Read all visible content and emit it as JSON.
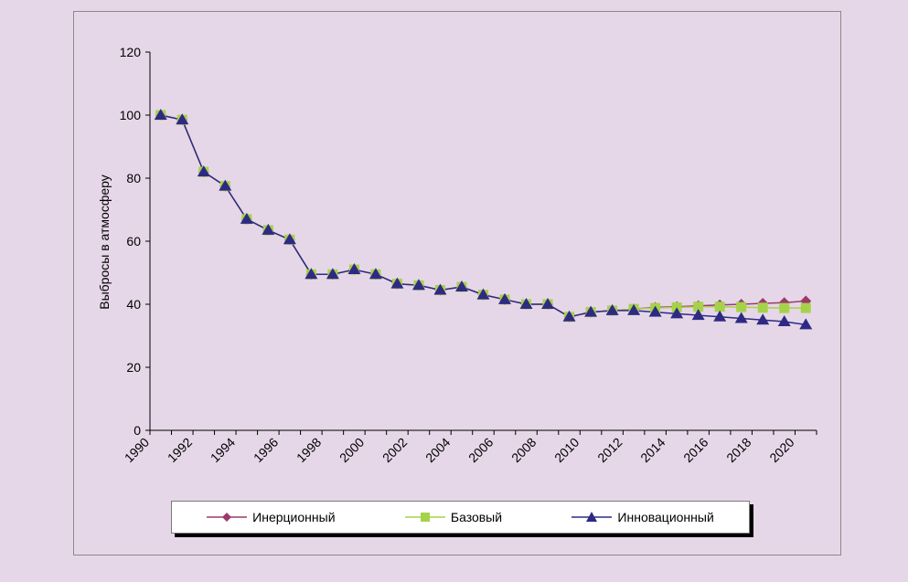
{
  "chart_data": {
    "type": "line",
    "title": "",
    "xlabel": "",
    "ylabel": "Выбросы в атмосферу",
    "ylim": [
      0,
      120
    ],
    "yticks": [
      0,
      20,
      40,
      60,
      80,
      100,
      120
    ],
    "xtick_labels": [
      "1990",
      "1992",
      "1994",
      "1996",
      "1998",
      "2000",
      "2002",
      "2004",
      "2006",
      "2008",
      "2010",
      "2012",
      "2014",
      "2016",
      "2018",
      "2020"
    ],
    "legend_position": "bottom",
    "grid": false,
    "x": [
      1990,
      1991,
      1992,
      1993,
      1994,
      1995,
      1996,
      1997,
      1998,
      1999,
      2000,
      2001,
      2002,
      2003,
      2004,
      2005,
      2006,
      2007,
      2008,
      2009,
      2010,
      2011,
      2012,
      2013,
      2014,
      2015,
      2016,
      2017,
      2018,
      2019,
      2020
    ],
    "series": [
      {
        "name": "Инерционный",
        "color": "#9b3a6b",
        "marker": "diamond",
        "values": [
          100,
          98.5,
          82,
          77.5,
          67,
          63.5,
          60.5,
          49.5,
          49.5,
          51,
          49.5,
          46.5,
          46,
          44.5,
          45.5,
          43,
          41.5,
          40,
          40,
          36,
          37.5,
          38,
          38.5,
          39,
          39.2,
          39.5,
          39.8,
          40,
          40.3,
          40.5,
          41
        ]
      },
      {
        "name": "Базовый",
        "color": "#a6d24a",
        "marker": "square",
        "values": [
          100,
          98.5,
          82,
          77.5,
          67,
          63.5,
          60.5,
          49.5,
          49.5,
          51,
          49.5,
          46.5,
          46,
          44.5,
          45.5,
          43,
          41.5,
          40,
          40,
          36,
          37.5,
          38,
          38.5,
          38.8,
          39,
          39.2,
          39.2,
          39.1,
          38.9,
          38.8,
          38.8
        ]
      },
      {
        "name": "Инновационный",
        "color": "#2e2a84",
        "marker": "triangle",
        "values": [
          100,
          98.5,
          82,
          77.5,
          67,
          63.5,
          60.5,
          49.5,
          49.5,
          51,
          49.5,
          46.5,
          46,
          44.5,
          45.5,
          43,
          41.5,
          40,
          40,
          36,
          37.5,
          38,
          38,
          37.5,
          37,
          36.5,
          36,
          35.5,
          35,
          34.5,
          33.5
        ]
      }
    ]
  }
}
